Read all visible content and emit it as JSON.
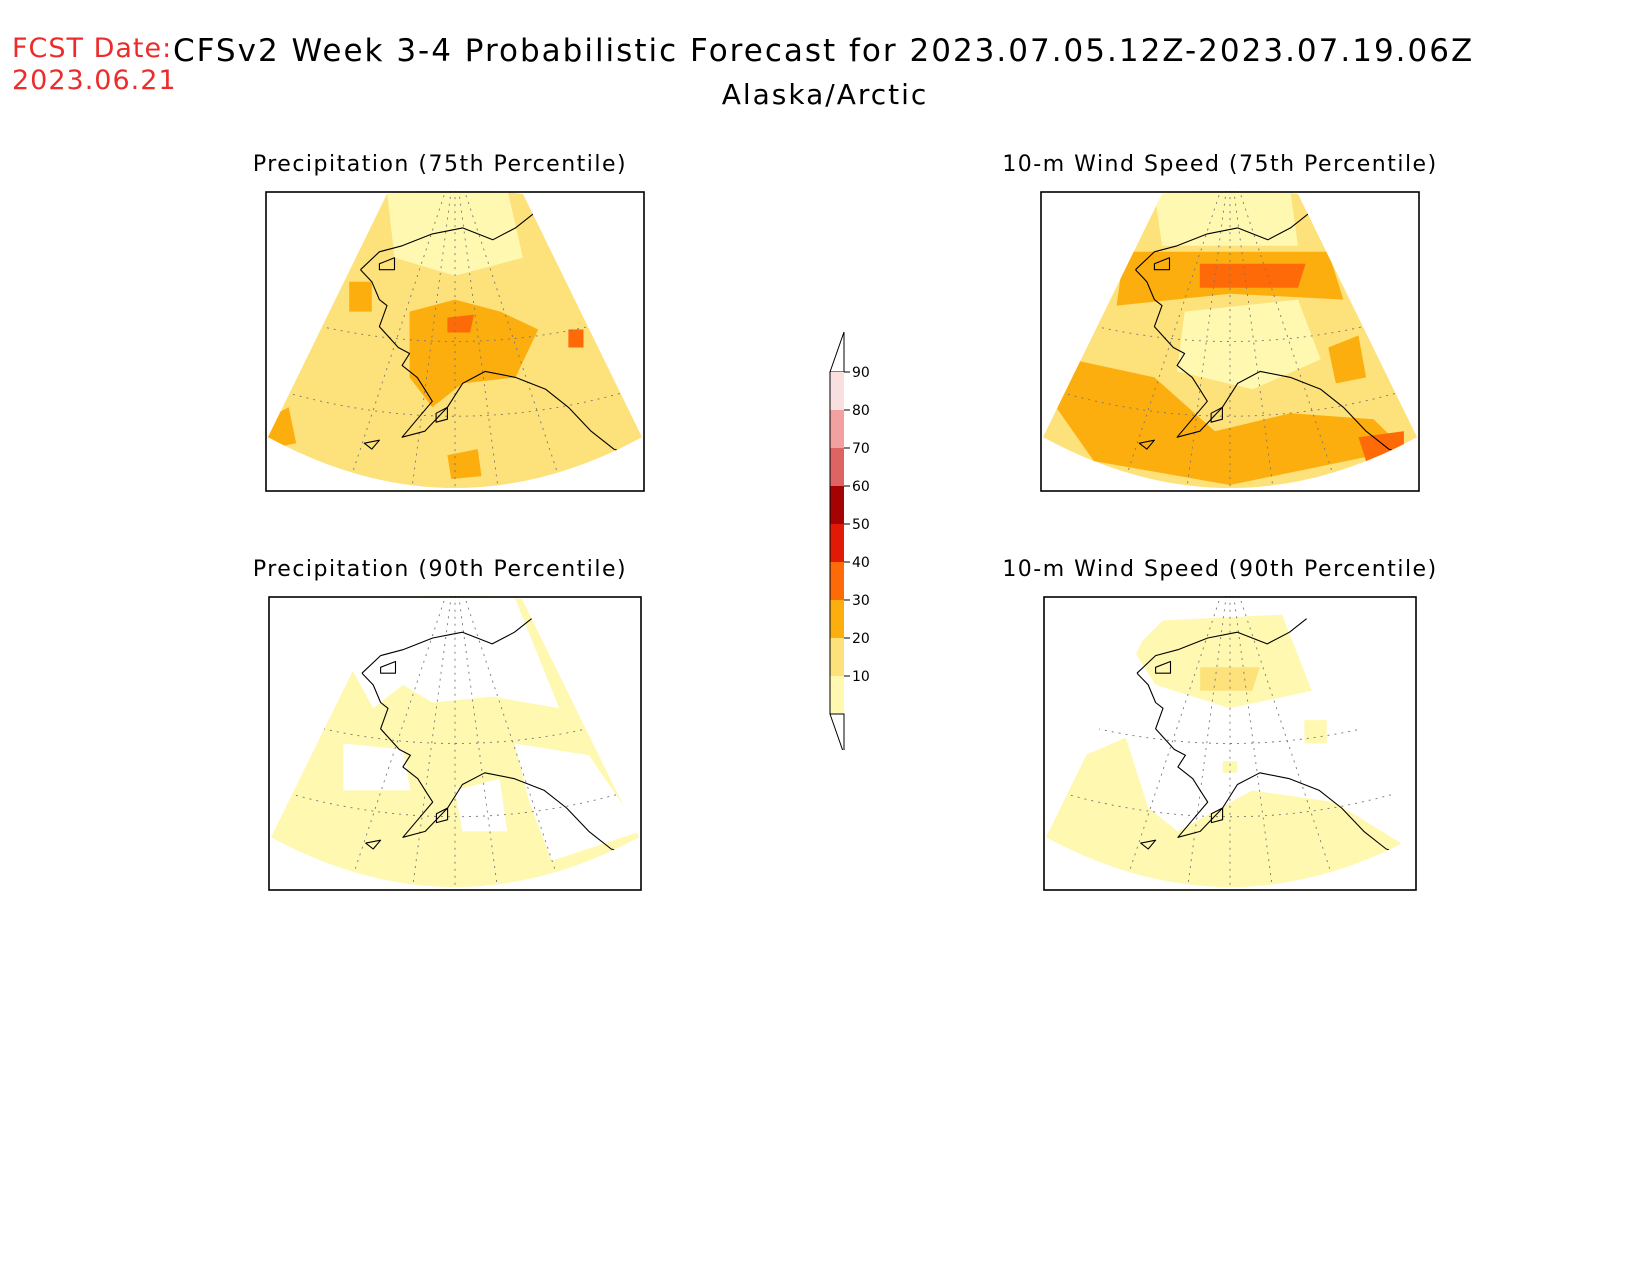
{
  "header": {
    "fcst_label": "FCST Date:",
    "fcst_date": "2023.06.21",
    "title": "CFSv2 Week 3-4 Probabilistic Forecast for 2023.07.05.12Z-2023.07.19.06Z",
    "region": "Alaska/Arctic"
  },
  "panels": [
    {
      "id": "precip75",
      "title": "Precipitation (75th Percentile)",
      "base": "#fde17a",
      "patches": [
        {
          "c": "#fff8b0",
          "pts": [
            [
              0.32,
              0.0
            ],
            [
              0.64,
              0.0
            ],
            [
              0.68,
              0.22
            ],
            [
              0.5,
              0.28
            ],
            [
              0.34,
              0.22
            ]
          ]
        },
        {
          "c": "#fdae0f",
          "pts": [
            [
              0.38,
              0.4
            ],
            [
              0.5,
              0.36
            ],
            [
              0.62,
              0.4
            ],
            [
              0.72,
              0.46
            ],
            [
              0.66,
              0.62
            ],
            [
              0.52,
              0.64
            ],
            [
              0.44,
              0.72
            ],
            [
              0.38,
              0.62
            ]
          ]
        },
        {
          "c": "#fd6a07",
          "pts": [
            [
              0.48,
              0.42
            ],
            [
              0.55,
              0.41
            ],
            [
              0.54,
              0.47
            ],
            [
              0.48,
              0.47
            ]
          ]
        },
        {
          "c": "#fd6a07",
          "pts": [
            [
              0.8,
              0.46
            ],
            [
              0.84,
              0.46
            ],
            [
              0.84,
              0.52
            ],
            [
              0.8,
              0.52
            ]
          ]
        },
        {
          "c": "#fdae0f",
          "pts": [
            [
              0.0,
              0.76
            ],
            [
              0.06,
              0.72
            ],
            [
              0.08,
              0.84
            ],
            [
              0.0,
              0.86
            ]
          ]
        },
        {
          "c": "#fdae0f",
          "pts": [
            [
              0.48,
              0.88
            ],
            [
              0.56,
              0.86
            ],
            [
              0.57,
              0.95
            ],
            [
              0.49,
              0.96
            ]
          ]
        },
        {
          "c": "#fdae0f",
          "pts": [
            [
              0.22,
              0.3
            ],
            [
              0.28,
              0.3
            ],
            [
              0.28,
              0.4
            ],
            [
              0.22,
              0.4
            ]
          ]
        }
      ]
    },
    {
      "id": "wind75",
      "title": "10-m Wind Speed (75th Percentile)",
      "base": "#fde17a",
      "patches": [
        {
          "c": "#fff8b0",
          "pts": [
            [
              0.3,
              0.0
            ],
            [
              0.66,
              0.0
            ],
            [
              0.68,
              0.18
            ],
            [
              0.32,
              0.18
            ]
          ]
        },
        {
          "c": "#fdae0f",
          "pts": [
            [
              0.22,
              0.2
            ],
            [
              0.76,
              0.2
            ],
            [
              0.8,
              0.36
            ],
            [
              0.5,
              0.34
            ],
            [
              0.2,
              0.38
            ]
          ]
        },
        {
          "c": "#fd6a07",
          "pts": [
            [
              0.42,
              0.24
            ],
            [
              0.7,
              0.24
            ],
            [
              0.68,
              0.32
            ],
            [
              0.42,
              0.32
            ]
          ]
        },
        {
          "c": "#fff8b0",
          "pts": [
            [
              0.38,
              0.4
            ],
            [
              0.68,
              0.36
            ],
            [
              0.74,
              0.56
            ],
            [
              0.56,
              0.66
            ],
            [
              0.36,
              0.6
            ]
          ]
        },
        {
          "c": "#fdae0f",
          "pts": [
            [
              0.08,
              0.56
            ],
            [
              0.3,
              0.62
            ],
            [
              0.46,
              0.8
            ],
            [
              0.66,
              0.74
            ],
            [
              0.88,
              0.76
            ],
            [
              0.96,
              0.86
            ],
            [
              0.5,
              0.98
            ],
            [
              0.14,
              0.9
            ],
            [
              0.04,
              0.72
            ]
          ]
        },
        {
          "c": "#fd6a07",
          "pts": [
            [
              0.84,
              0.82
            ],
            [
              0.96,
              0.8
            ],
            [
              0.96,
              0.9
            ],
            [
              0.86,
              0.9
            ]
          ]
        },
        {
          "c": "#fdae0f",
          "pts": [
            [
              0.76,
              0.52
            ],
            [
              0.84,
              0.48
            ],
            [
              0.86,
              0.62
            ],
            [
              0.78,
              0.64
            ]
          ]
        }
      ]
    },
    {
      "id": "precip90",
      "title": "Precipitation (90th Percentile)",
      "base": "#fff8b0",
      "patches": [
        {
          "c": "#ffffff",
          "pts": [
            [
              0.26,
              0.0
            ],
            [
              0.66,
              0.0
            ],
            [
              0.78,
              0.38
            ],
            [
              0.6,
              0.34
            ],
            [
              0.44,
              0.36
            ],
            [
              0.36,
              0.3
            ],
            [
              0.28,
              0.38
            ],
            [
              0.22,
              0.24
            ]
          ]
        },
        {
          "c": "#ffffff",
          "pts": [
            [
              0.2,
              0.5
            ],
            [
              0.36,
              0.52
            ],
            [
              0.38,
              0.66
            ],
            [
              0.2,
              0.66
            ]
          ]
        },
        {
          "c": "#ffffff",
          "pts": [
            [
              0.66,
              0.5
            ],
            [
              0.86,
              0.54
            ],
            [
              1.0,
              0.8
            ],
            [
              0.76,
              0.9
            ],
            [
              0.7,
              0.7
            ]
          ]
        },
        {
          "c": "#ffffff",
          "pts": [
            [
              0.5,
              0.66
            ],
            [
              0.62,
              0.62
            ],
            [
              0.64,
              0.8
            ],
            [
              0.52,
              0.8
            ]
          ]
        }
      ]
    },
    {
      "id": "wind90",
      "title": "10-m Wind Speed (90th Percentile)",
      "base": "#ffffff",
      "patches": [
        {
          "c": "#fff8b0",
          "pts": [
            [
              0.32,
              0.08
            ],
            [
              0.64,
              0.06
            ],
            [
              0.72,
              0.32
            ],
            [
              0.5,
              0.38
            ],
            [
              0.3,
              0.3
            ],
            [
              0.24,
              0.18
            ]
          ]
        },
        {
          "c": "#fde17a",
          "pts": [
            [
              0.42,
              0.24
            ],
            [
              0.58,
              0.24
            ],
            [
              0.56,
              0.32
            ],
            [
              0.42,
              0.32
            ]
          ]
        },
        {
          "c": "#fff8b0",
          "pts": [
            [
              0.0,
              0.6
            ],
            [
              0.22,
              0.48
            ],
            [
              0.28,
              0.72
            ],
            [
              0.36,
              0.8
            ],
            [
              0.56,
              0.66
            ],
            [
              0.78,
              0.7
            ],
            [
              0.96,
              0.84
            ],
            [
              0.8,
              1.0
            ],
            [
              0.2,
              1.0
            ],
            [
              0.0,
              0.9
            ]
          ]
        },
        {
          "c": "#fff8b0",
          "pts": [
            [
              0.7,
              0.42
            ],
            [
              0.76,
              0.42
            ],
            [
              0.76,
              0.5
            ],
            [
              0.7,
              0.5
            ]
          ]
        },
        {
          "c": "#fff8b0",
          "pts": [
            [
              0.48,
              0.56
            ],
            [
              0.52,
              0.56
            ],
            [
              0.52,
              0.6
            ],
            [
              0.48,
              0.6
            ]
          ]
        }
      ]
    }
  ],
  "colorbar": {
    "levels": [
      {
        "label": "90",
        "color": "#f9e0e0"
      },
      {
        "label": "80",
        "color": "#f3a0a0"
      },
      {
        "label": "70",
        "color": "#de6464"
      },
      {
        "label": "60",
        "color": "#a50303"
      },
      {
        "label": "50",
        "color": "#e01a06"
      },
      {
        "label": "40",
        "color": "#fd6a07"
      },
      {
        "label": "30",
        "color": "#fdae0f"
      },
      {
        "label": "20",
        "color": "#fde17a"
      },
      {
        "label": "10",
        "color": "#fff8b0"
      }
    ]
  }
}
